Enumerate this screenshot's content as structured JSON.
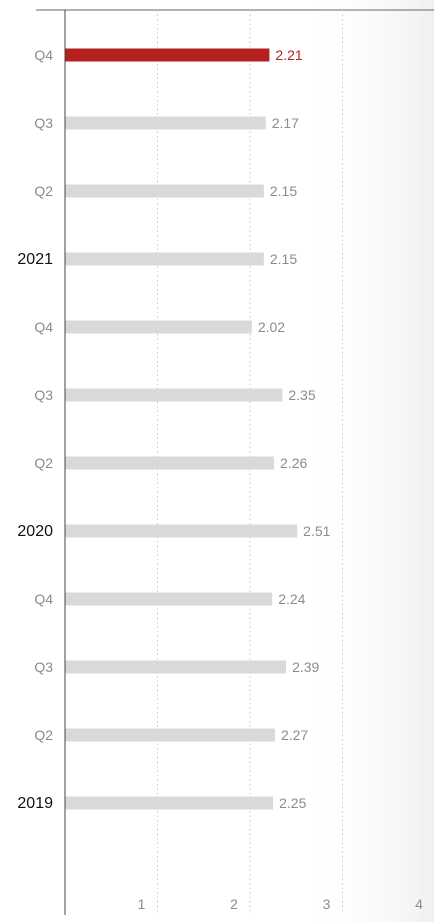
{
  "chart_data": {
    "type": "bar",
    "orientation": "horizontal",
    "categories": [
      "Q4",
      "Q3",
      "Q2",
      "2021",
      "Q4",
      "Q3",
      "Q2",
      "2020",
      "Q4",
      "Q3",
      "Q2",
      "2019"
    ],
    "category_is_year": [
      false,
      false,
      false,
      true,
      false,
      false,
      false,
      true,
      false,
      false,
      false,
      true
    ],
    "values": [
      2.21,
      2.17,
      2.15,
      2.15,
      2.02,
      2.35,
      2.26,
      2.51,
      2.24,
      2.39,
      2.27,
      2.25
    ],
    "value_labels": [
      "2.21",
      "2.17",
      "2.15",
      "2.15",
      "2.02",
      "2.35",
      "2.26",
      "2.51",
      "2.24",
      "2.39",
      "2.27",
      "2.25"
    ],
    "highlight_index": 0,
    "xlim": [
      0,
      4
    ],
    "x_ticks": [
      1,
      2,
      3,
      4
    ],
    "x_tick_labels": [
      "1",
      "2",
      "3",
      "4"
    ],
    "grid": "vertical dotted",
    "title": "",
    "xlabel": "",
    "ylabel": ""
  },
  "colors": {
    "bar": "#d9d9d9",
    "highlight": "#b3201f",
    "grid": "#c8c8c8",
    "axis": "#444444",
    "label": "#8c8c8c",
    "year_label": "#111111"
  }
}
